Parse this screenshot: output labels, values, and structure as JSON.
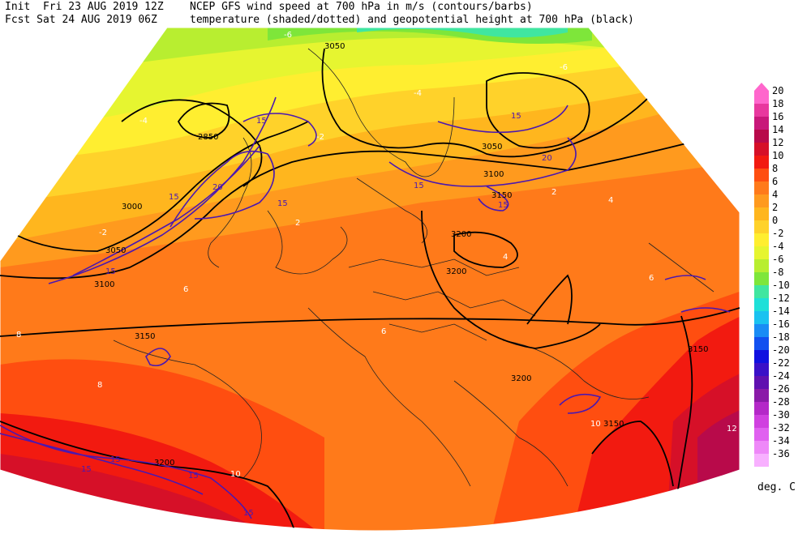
{
  "header": {
    "line1_left": "Init  Fri 23 AUG 2019 12Z",
    "line1_right": "NCEP GFS wind speed at 700 hPa in m/s (contours/barbs)",
    "line2_left": "Fcst Sat 24 AUG 2019 06Z",
    "line2_right": "temperature (shaded/dotted) and geopotential height at 700 hPa (black)"
  },
  "legend": {
    "units": "deg. C",
    "levels": [
      {
        "label": "20",
        "color": "#ff66cc"
      },
      {
        "label": "18",
        "color": "#e8389e"
      },
      {
        "label": "16",
        "color": "#c8187a"
      },
      {
        "label": "14",
        "color": "#b80a4a"
      },
      {
        "label": "12",
        "color": "#d61028"
      },
      {
        "label": "10",
        "color": "#f21a10"
      },
      {
        "label": "8",
        "color": "#ff4e10"
      },
      {
        "label": "6",
        "color": "#ff7a1a"
      },
      {
        "label": "4",
        "color": "#ff9a1e"
      },
      {
        "label": "2",
        "color": "#ffb61e"
      },
      {
        "label": "0",
        "color": "#ffd22a"
      },
      {
        "label": "-2",
        "color": "#ffee30"
      },
      {
        "label": "-4",
        "color": "#e6f530"
      },
      {
        "label": "-6",
        "color": "#b8ee30"
      },
      {
        "label": "-8",
        "color": "#7ee63a"
      },
      {
        "label": "-10",
        "color": "#40e6a0"
      },
      {
        "label": "-12",
        "color": "#1ee0d8"
      },
      {
        "label": "-14",
        "color": "#1ac2f0"
      },
      {
        "label": "-16",
        "color": "#1a8cf5"
      },
      {
        "label": "-18",
        "color": "#1250f0"
      },
      {
        "label": "-20",
        "color": "#1010e0"
      },
      {
        "label": "-22",
        "color": "#3a10c8"
      },
      {
        "label": "-24",
        "color": "#6010b0"
      },
      {
        "label": "-26",
        "color": "#8a1aa8"
      },
      {
        "label": "-28",
        "color": "#b428c8"
      },
      {
        "label": "-30",
        "color": "#d040e0"
      },
      {
        "label": "-32",
        "color": "#e060f0"
      },
      {
        "label": "-34",
        "color": "#ee88f8"
      },
      {
        "label": "-36",
        "color": "#f8b0ff"
      }
    ]
  },
  "map": {
    "height_labels": [
      "3050",
      "2850",
      "3000",
      "3050",
      "3100",
      "3150",
      "3200",
      "3200",
      "3200",
      "3150",
      "3200",
      "3150",
      "3050",
      "3100",
      "3150",
      "3200"
    ],
    "wind_labels": [
      "15",
      "15",
      "20",
      "15",
      "15",
      "20",
      "15",
      "15",
      "15",
      "15",
      "15",
      "15",
      "15"
    ],
    "temp_labels": [
      "-6",
      "-6",
      "-4",
      "-4",
      "-2",
      "-2",
      "2",
      "4",
      "4",
      "6",
      "6",
      "8",
      "6",
      "8",
      "10",
      "10",
      "12",
      "2"
    ]
  }
}
